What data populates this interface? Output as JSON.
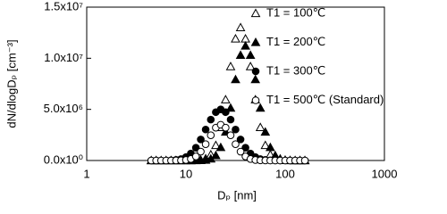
{
  "chart_data": {
    "type": "scatter",
    "xlabel": "Dₚ [nm]",
    "ylabel": "dN/dlogDₚ [cm⁻³]",
    "xscale": "log",
    "xlim": [
      1,
      1000
    ],
    "xticks": [
      1,
      10,
      100,
      1000
    ],
    "ylim": [
      0,
      15000000
    ],
    "yticks": [
      {
        "value": 0,
        "label": "0.0x10⁰"
      },
      {
        "value": 5000000,
        "label": "5.0x10⁶"
      },
      {
        "value": 10000000,
        "label": "1.0x10⁷"
      },
      {
        "value": 15000000,
        "label": "1.5x10⁷"
      }
    ],
    "legend": "upper right",
    "x": [
      4.47,
      5.01,
      5.62,
      6.31,
      7.08,
      7.94,
      8.91,
      10.0,
      11.2,
      12.6,
      14.1,
      15.8,
      17.8,
      20.0,
      22.4,
      25.1,
      28.2,
      31.6,
      35.5,
      39.8,
      44.7,
      50.1,
      56.2,
      63.1,
      70.8,
      79.4,
      89.1,
      100,
      112,
      126,
      141,
      158
    ],
    "series": [
      {
        "name": "T1 = 100℃",
        "color": "#000000",
        "marker": "triangle-open",
        "values": [
          0,
          0,
          0,
          0,
          0,
          0,
          0,
          0,
          0,
          11000,
          50000,
          185000,
          570000,
          1480000,
          3240000,
          5950000,
          9190000,
          11900000,
          13000000,
          11900000,
          9190000,
          5950000,
          3240000,
          1480000,
          570000,
          185000,
          50000,
          11000,
          0,
          0,
          0,
          0
        ]
      },
      {
        "name": "T1 = 200℃",
        "color": "#000000",
        "marker": "triangle-filled",
        "values": [
          0,
          0,
          0,
          0,
          0,
          0,
          0,
          0,
          0,
          0,
          10000,
          43000,
          160000,
          490000,
          1280000,
          2790000,
          5130000,
          7920000,
          10300000,
          11200000,
          10300000,
          7920000,
          5130000,
          2790000,
          1280000,
          490000,
          160000,
          43000,
          10000,
          0,
          0,
          0
        ]
      },
      {
        "name": "T1 = 300℃",
        "color": "#000000",
        "marker": "circle-filled",
        "values": [
          0,
          0,
          0,
          0,
          19000,
          56000,
          140000,
          330000,
          680000,
          1250000,
          2060000,
          3030000,
          4000000,
          4730000,
          5000000,
          4730000,
          4000000,
          3030000,
          2060000,
          1250000,
          680000,
          330000,
          140000,
          56000,
          19000,
          0,
          0,
          0,
          0,
          0,
          0,
          0
        ]
      },
      {
        "name": "T1 = 500℃ (Standard)",
        "color": "#000000",
        "marker": "circle-open",
        "values": [
          0,
          0,
          0,
          0,
          0,
          3100,
          13000,
          50000,
          150000,
          400000,
          870000,
          1600000,
          2470000,
          3210000,
          3500000,
          3210000,
          2470000,
          1600000,
          870000,
          400000,
          150000,
          50000,
          13000,
          3100,
          0,
          0,
          0,
          0,
          0,
          0,
          0,
          0
        ]
      }
    ]
  }
}
